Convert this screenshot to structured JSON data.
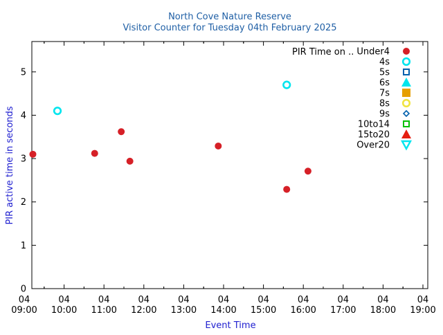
{
  "chart_data": {
    "type": "scatter",
    "title": "North Cove Nature Reserve",
    "subtitle": "Visitor Counter for Tuesday 04th February 2025",
    "xlabel": "Event Time",
    "ylabel": "PIR active time in seconds",
    "xlim": [
      "09:00",
      "19:00"
    ],
    "ylim": [
      0,
      5.7
    ],
    "yticks": [
      "0",
      "1",
      "2",
      "3",
      "4",
      "5"
    ],
    "xticks": [
      {
        "day": "04",
        "time": "09:00"
      },
      {
        "day": "04",
        "time": "10:00"
      },
      {
        "day": "04",
        "time": "11:00"
      },
      {
        "day": "04",
        "time": "12:00"
      },
      {
        "day": "04",
        "time": "13:00"
      },
      {
        "day": "04",
        "time": "14:00"
      },
      {
        "day": "04",
        "time": "15:00"
      },
      {
        "day": "04",
        "time": "16:00"
      },
      {
        "day": "04",
        "time": "17:00"
      },
      {
        "day": "04",
        "time": "18:00"
      },
      {
        "day": "04",
        "time": "19:00"
      }
    ],
    "grid": false,
    "legend_position": "top-right",
    "legend_title": "PIR Time on ..",
    "series": [
      {
        "name": "Under4",
        "marker": "filled-circle",
        "color": "#d62027",
        "points": [
          [
            "09:13",
            3.1
          ],
          [
            "10:46",
            3.12
          ],
          [
            "11:26",
            3.62
          ],
          [
            "11:39",
            2.94
          ],
          [
            "13:52",
            3.29
          ],
          [
            "15:35",
            2.29
          ],
          [
            "16:07",
            2.71
          ]
        ]
      },
      {
        "name": "4s",
        "marker": "open-circle",
        "color": "#00e5ee",
        "points": [
          [
            "09:50",
            4.1
          ],
          [
            "15:35",
            4.7
          ]
        ]
      },
      {
        "name": "5s",
        "marker": "open-square",
        "color": "#0060ad",
        "points": []
      },
      {
        "name": "6s",
        "marker": "filled-triangle",
        "color": "#00e5ee",
        "points": []
      },
      {
        "name": "7s",
        "marker": "filled-square",
        "color": "#e69f00",
        "points": []
      },
      {
        "name": "8s",
        "marker": "open-circle",
        "color": "#f0e442",
        "points": []
      },
      {
        "name": "9s",
        "marker": "open-diamond",
        "color": "#0060ad",
        "points": []
      },
      {
        "name": "10to14",
        "marker": "open-square",
        "color": "#00c000",
        "points": []
      },
      {
        "name": "15to20",
        "marker": "filled-triangle",
        "color": "#e51e10",
        "points": []
      },
      {
        "name": "Over20",
        "marker": "open-triangle-down",
        "color": "#00e5ee",
        "points": []
      }
    ]
  }
}
